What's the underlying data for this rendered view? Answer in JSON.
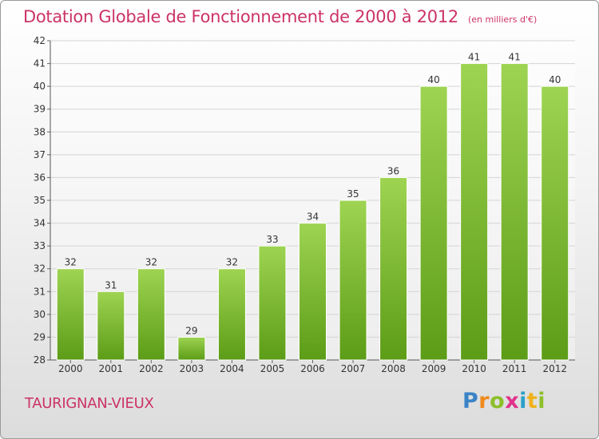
{
  "header": {
    "title": "Dotation Globale de Fonctionnement de 2000 à 2012",
    "unit": "(en milliers d'€)"
  },
  "footer": {
    "commune": "TAURIGNAN-VIEUX",
    "logo_text": "Proxiti"
  },
  "colors": {
    "bar_top": "#9ed452",
    "bar_bottom": "#5c9c17",
    "title": "#cc3366"
  },
  "chart_data": {
    "type": "bar",
    "title": "Dotation Globale de Fonctionnement de 2000 à 2012",
    "subtitle": "(en milliers d'€)",
    "categories": [
      "2000",
      "2001",
      "2002",
      "2003",
      "2004",
      "2005",
      "2006",
      "2007",
      "2008",
      "2009",
      "2010",
      "2011",
      "2012"
    ],
    "values": [
      32,
      31,
      32,
      29,
      32,
      33,
      34,
      35,
      36,
      40,
      41,
      41,
      40
    ],
    "ylim": [
      28,
      42
    ],
    "yticks": [
      28,
      29,
      30,
      31,
      32,
      33,
      34,
      35,
      36,
      37,
      38,
      39,
      40,
      41,
      42
    ],
    "grid": true,
    "legend": "none"
  }
}
